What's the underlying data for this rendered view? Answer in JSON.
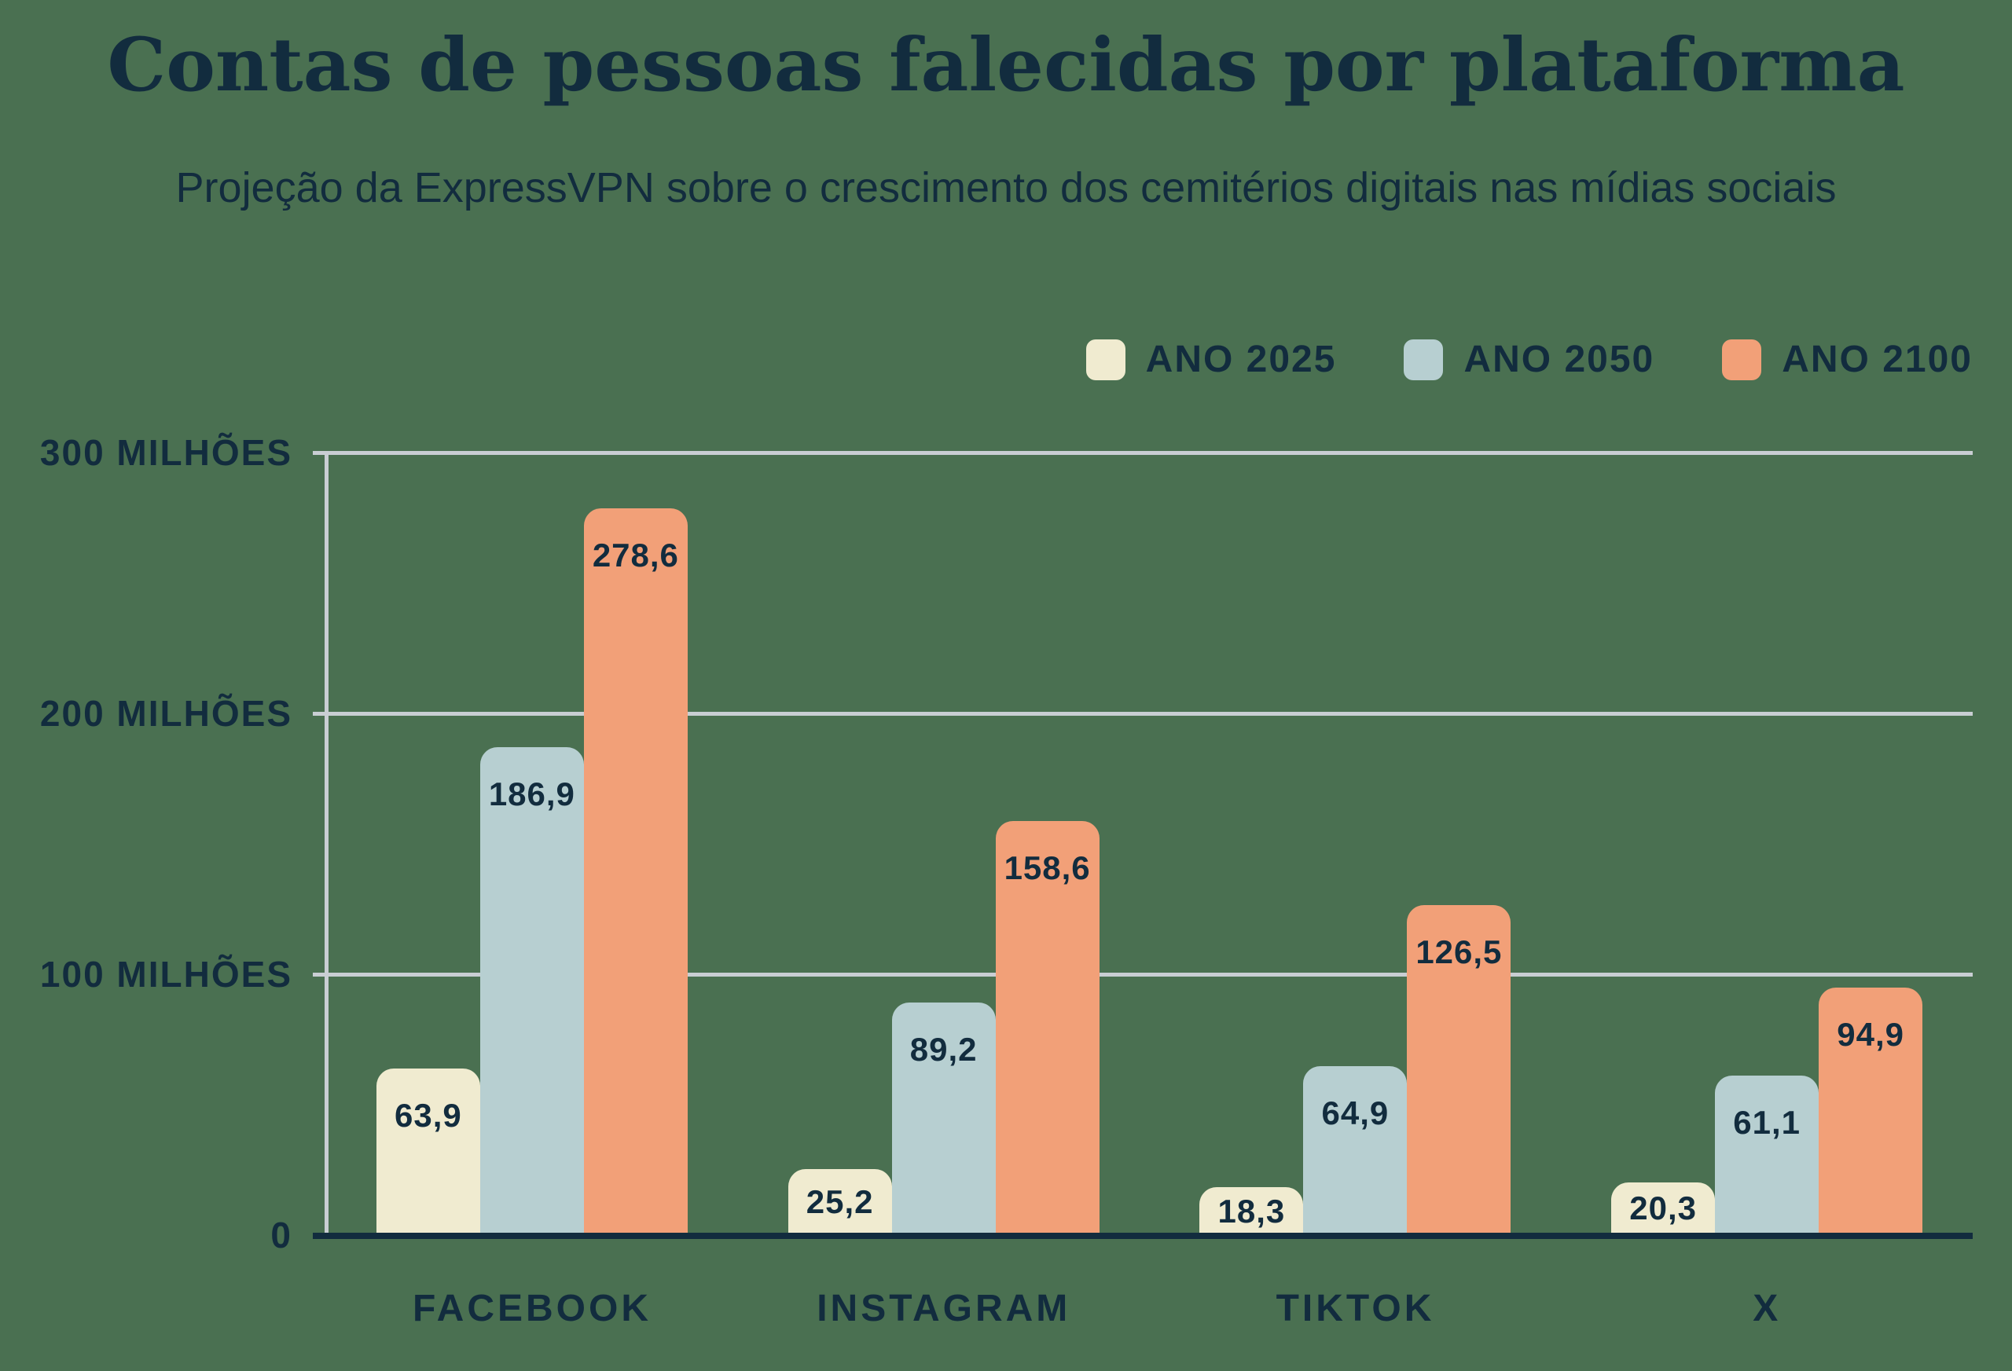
{
  "page": {
    "title": "Contas de pessoas falecidas por plataforma",
    "subtitle": "Projeção da ExpressVPN sobre o crescimento dos cemitérios digitais nas mídias sociais"
  },
  "colors": {
    "background": "#4a7051",
    "text": "#122c3e",
    "gridline": "#c9ced3",
    "axis_line": "#c9ced3",
    "baseline": "#122c3e",
    "series_2025": "#f0ebd0",
    "series_2050": "#b7cfd1",
    "series_2100": "#f2a078"
  },
  "legend": {
    "items": [
      {
        "label": "ANO 2025",
        "color": "#f0ebd0"
      },
      {
        "label": "ANO 2050",
        "color": "#b7cfd1"
      },
      {
        "label": "ANO 2100",
        "color": "#f2a078"
      }
    ]
  },
  "y_axis": {
    "ticks": [
      {
        "label": "300 MILHÕES",
        "value": 300
      },
      {
        "label": "200 MILHÕES",
        "value": 200
      },
      {
        "label": "100 MILHÕES",
        "value": 100
      },
      {
        "label": "0",
        "value": 0
      }
    ]
  },
  "chart_data": {
    "type": "bar",
    "title": "Contas de pessoas falecidas por plataforma",
    "subtitle": "Projeção da ExpressVPN sobre o crescimento dos cemitérios digitais nas mídias sociais",
    "categories": [
      "FACEBOOK",
      "INSTAGRAM",
      "TIKTOK",
      "X"
    ],
    "series": [
      {
        "name": "ANO 2025",
        "color": "#f0ebd0",
        "values": [
          63.9,
          25.2,
          18.3,
          20.3
        ],
        "labels": [
          "63,9",
          "25,2",
          "18,3",
          "20,3"
        ]
      },
      {
        "name": "ANO 2050",
        "color": "#b7cfd1",
        "values": [
          186.9,
          89.2,
          64.9,
          61.1
        ],
        "labels": [
          "186,9",
          "89,2",
          "64,9",
          "61,1"
        ]
      },
      {
        "name": "ANO 2100",
        "color": "#f2a078",
        "values": [
          278.6,
          158.6,
          126.5,
          94.9
        ],
        "labels": [
          "278,6",
          "158,6",
          "126,5",
          "94,9"
        ]
      }
    ],
    "unit": "milhões",
    "ylabel": "",
    "xlabel": "",
    "ylim": [
      0,
      300
    ],
    "gridlines": [
      100,
      200,
      300
    ],
    "grid": true,
    "legend_position": "top-right",
    "value_decimal_separator": ","
  }
}
